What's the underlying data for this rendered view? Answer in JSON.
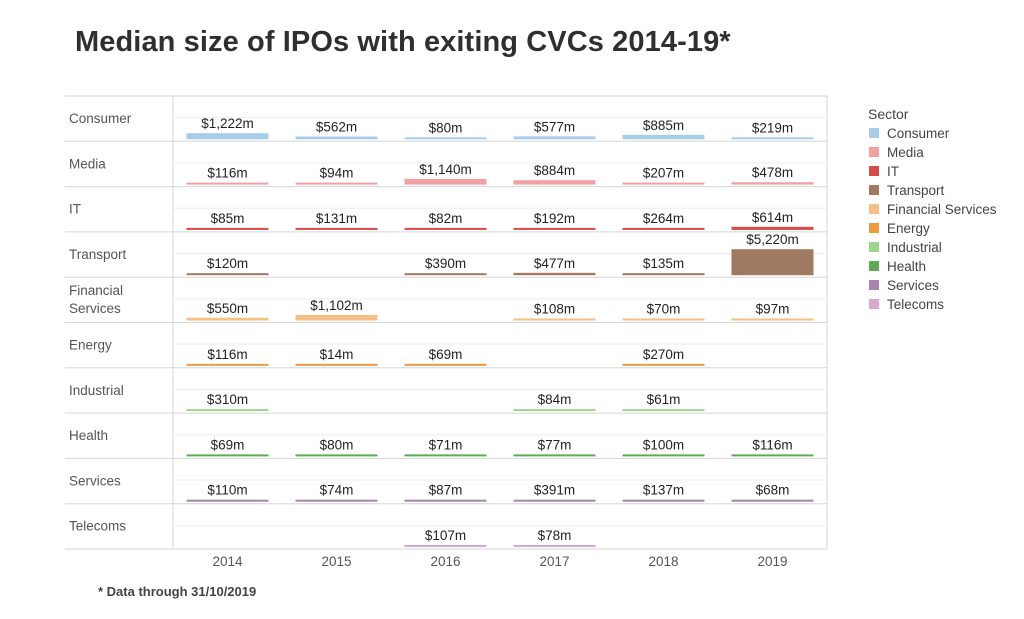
{
  "title": "Median size of IPOs with exiting CVCs 2014-19*",
  "footnote": "* Data through 31/10/2019",
  "chart_data": {
    "type": "bar",
    "subtype": "small-multiples-grid",
    "years": [
      "2014",
      "2015",
      "2016",
      "2017",
      "2018",
      "2019"
    ],
    "unit": "$m",
    "value_max": 5220,
    "legend_title": "Sector",
    "legend_position": "right",
    "grid": true,
    "sectors": [
      {
        "name": "Consumer",
        "label_lines": [
          "Consumer"
        ],
        "color": "#a6cde8",
        "values": [
          1222,
          562,
          80,
          577,
          885,
          219
        ],
        "labels": [
          "$1,222m",
          "$562m",
          "$80m",
          "$577m",
          "$885m",
          "$219m"
        ]
      },
      {
        "name": "Media",
        "label_lines": [
          "Media"
        ],
        "color": "#f2a1a3",
        "values": [
          116,
          94,
          1140,
          884,
          207,
          478
        ],
        "labels": [
          "$116m",
          "$94m",
          "$1,140m",
          "$884m",
          "$207m",
          "$478m"
        ]
      },
      {
        "name": "IT",
        "label_lines": [
          "IT"
        ],
        "color": "#d94b4b",
        "values": [
          85,
          131,
          82,
          192,
          264,
          614
        ],
        "labels": [
          "$85m",
          "$131m",
          "$82m",
          "$192m",
          "$264m",
          "$614m"
        ]
      },
      {
        "name": "Transport",
        "label_lines": [
          "Transport"
        ],
        "color": "#a07a60",
        "values": [
          120,
          null,
          390,
          477,
          135,
          5220
        ],
        "labels": [
          "$120m",
          "",
          "$390m",
          "$477m",
          "$135m",
          "$5,220m"
        ]
      },
      {
        "name": "Financial Services",
        "label_lines": [
          "Financial",
          "Services"
        ],
        "color": "#f5bf85",
        "values": [
          550,
          1102,
          null,
          108,
          70,
          97
        ],
        "labels": [
          "$550m",
          "$1,102m",
          "",
          "$108m",
          "$70m",
          "$97m"
        ]
      },
      {
        "name": "Energy",
        "label_lines": [
          "Energy"
        ],
        "color": "#ef9a3e",
        "values": [
          116,
          14,
          69,
          null,
          270,
          null
        ],
        "labels": [
          "$116m",
          "$14m",
          "$69m",
          "",
          "$270m",
          ""
        ]
      },
      {
        "name": "Industrial",
        "label_lines": [
          "Industrial"
        ],
        "color": "#9fd48f",
        "values": [
          310,
          null,
          null,
          84,
          61,
          null
        ],
        "labels": [
          "$310m",
          "",
          "",
          "$84m",
          "$61m",
          ""
        ]
      },
      {
        "name": "Health",
        "label_lines": [
          "Health"
        ],
        "color": "#5ea956",
        "values": [
          69,
          80,
          71,
          77,
          100,
          116
        ],
        "labels": [
          "$69m",
          "$80m",
          "$71m",
          "$77m",
          "$100m",
          "$116m"
        ]
      },
      {
        "name": "Services",
        "label_lines": [
          "Services"
        ],
        "color": "#a884b0",
        "values": [
          110,
          74,
          87,
          391,
          137,
          68
        ],
        "labels": [
          "$110m",
          "$74m",
          "$87m",
          "$391m",
          "$137m",
          "$68m"
        ]
      },
      {
        "name": "Telecoms",
        "label_lines": [
          "Telecoms"
        ],
        "color": "#d8a8d0",
        "values": [
          null,
          null,
          107,
          78,
          null,
          null
        ],
        "labels": [
          "",
          "",
          "$107m",
          "$78m",
          "",
          ""
        ]
      }
    ]
  }
}
